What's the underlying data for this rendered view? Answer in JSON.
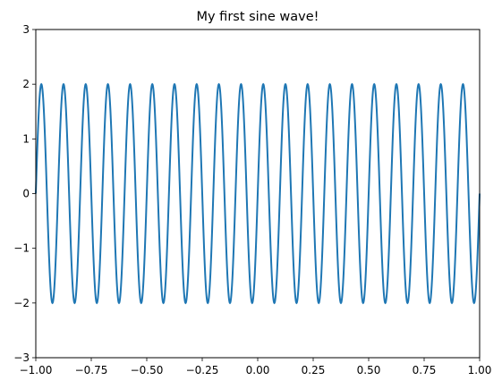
{
  "chart_data": {
    "type": "line",
    "title": "My first sine wave!",
    "xlabel": "",
    "ylabel": "",
    "xlim": [
      -1.0,
      1.0
    ],
    "ylim": [
      -3,
      3
    ],
    "x_ticks": [
      -1.0,
      -0.75,
      -0.5,
      -0.25,
      0.0,
      0.25,
      0.5,
      0.75,
      1.0
    ],
    "x_tick_labels": [
      "−1.00",
      "−0.75",
      "−0.50",
      "−0.25",
      "0.00",
      "0.25",
      "0.50",
      "0.75",
      "1.00"
    ],
    "y_ticks": [
      -3,
      -2,
      -1,
      0,
      1,
      2,
      3
    ],
    "y_tick_labels": [
      "−3",
      "−2",
      "−1",
      "0",
      "1",
      "2",
      "3"
    ],
    "grid": false,
    "legend": "none",
    "series": [
      {
        "function": "2*sin(2*pi*10*x)",
        "amplitude": 2,
        "frequency": 10,
        "x_range": [
          -1.0,
          1.0
        ],
        "color": "#1f77b4"
      }
    ]
  }
}
